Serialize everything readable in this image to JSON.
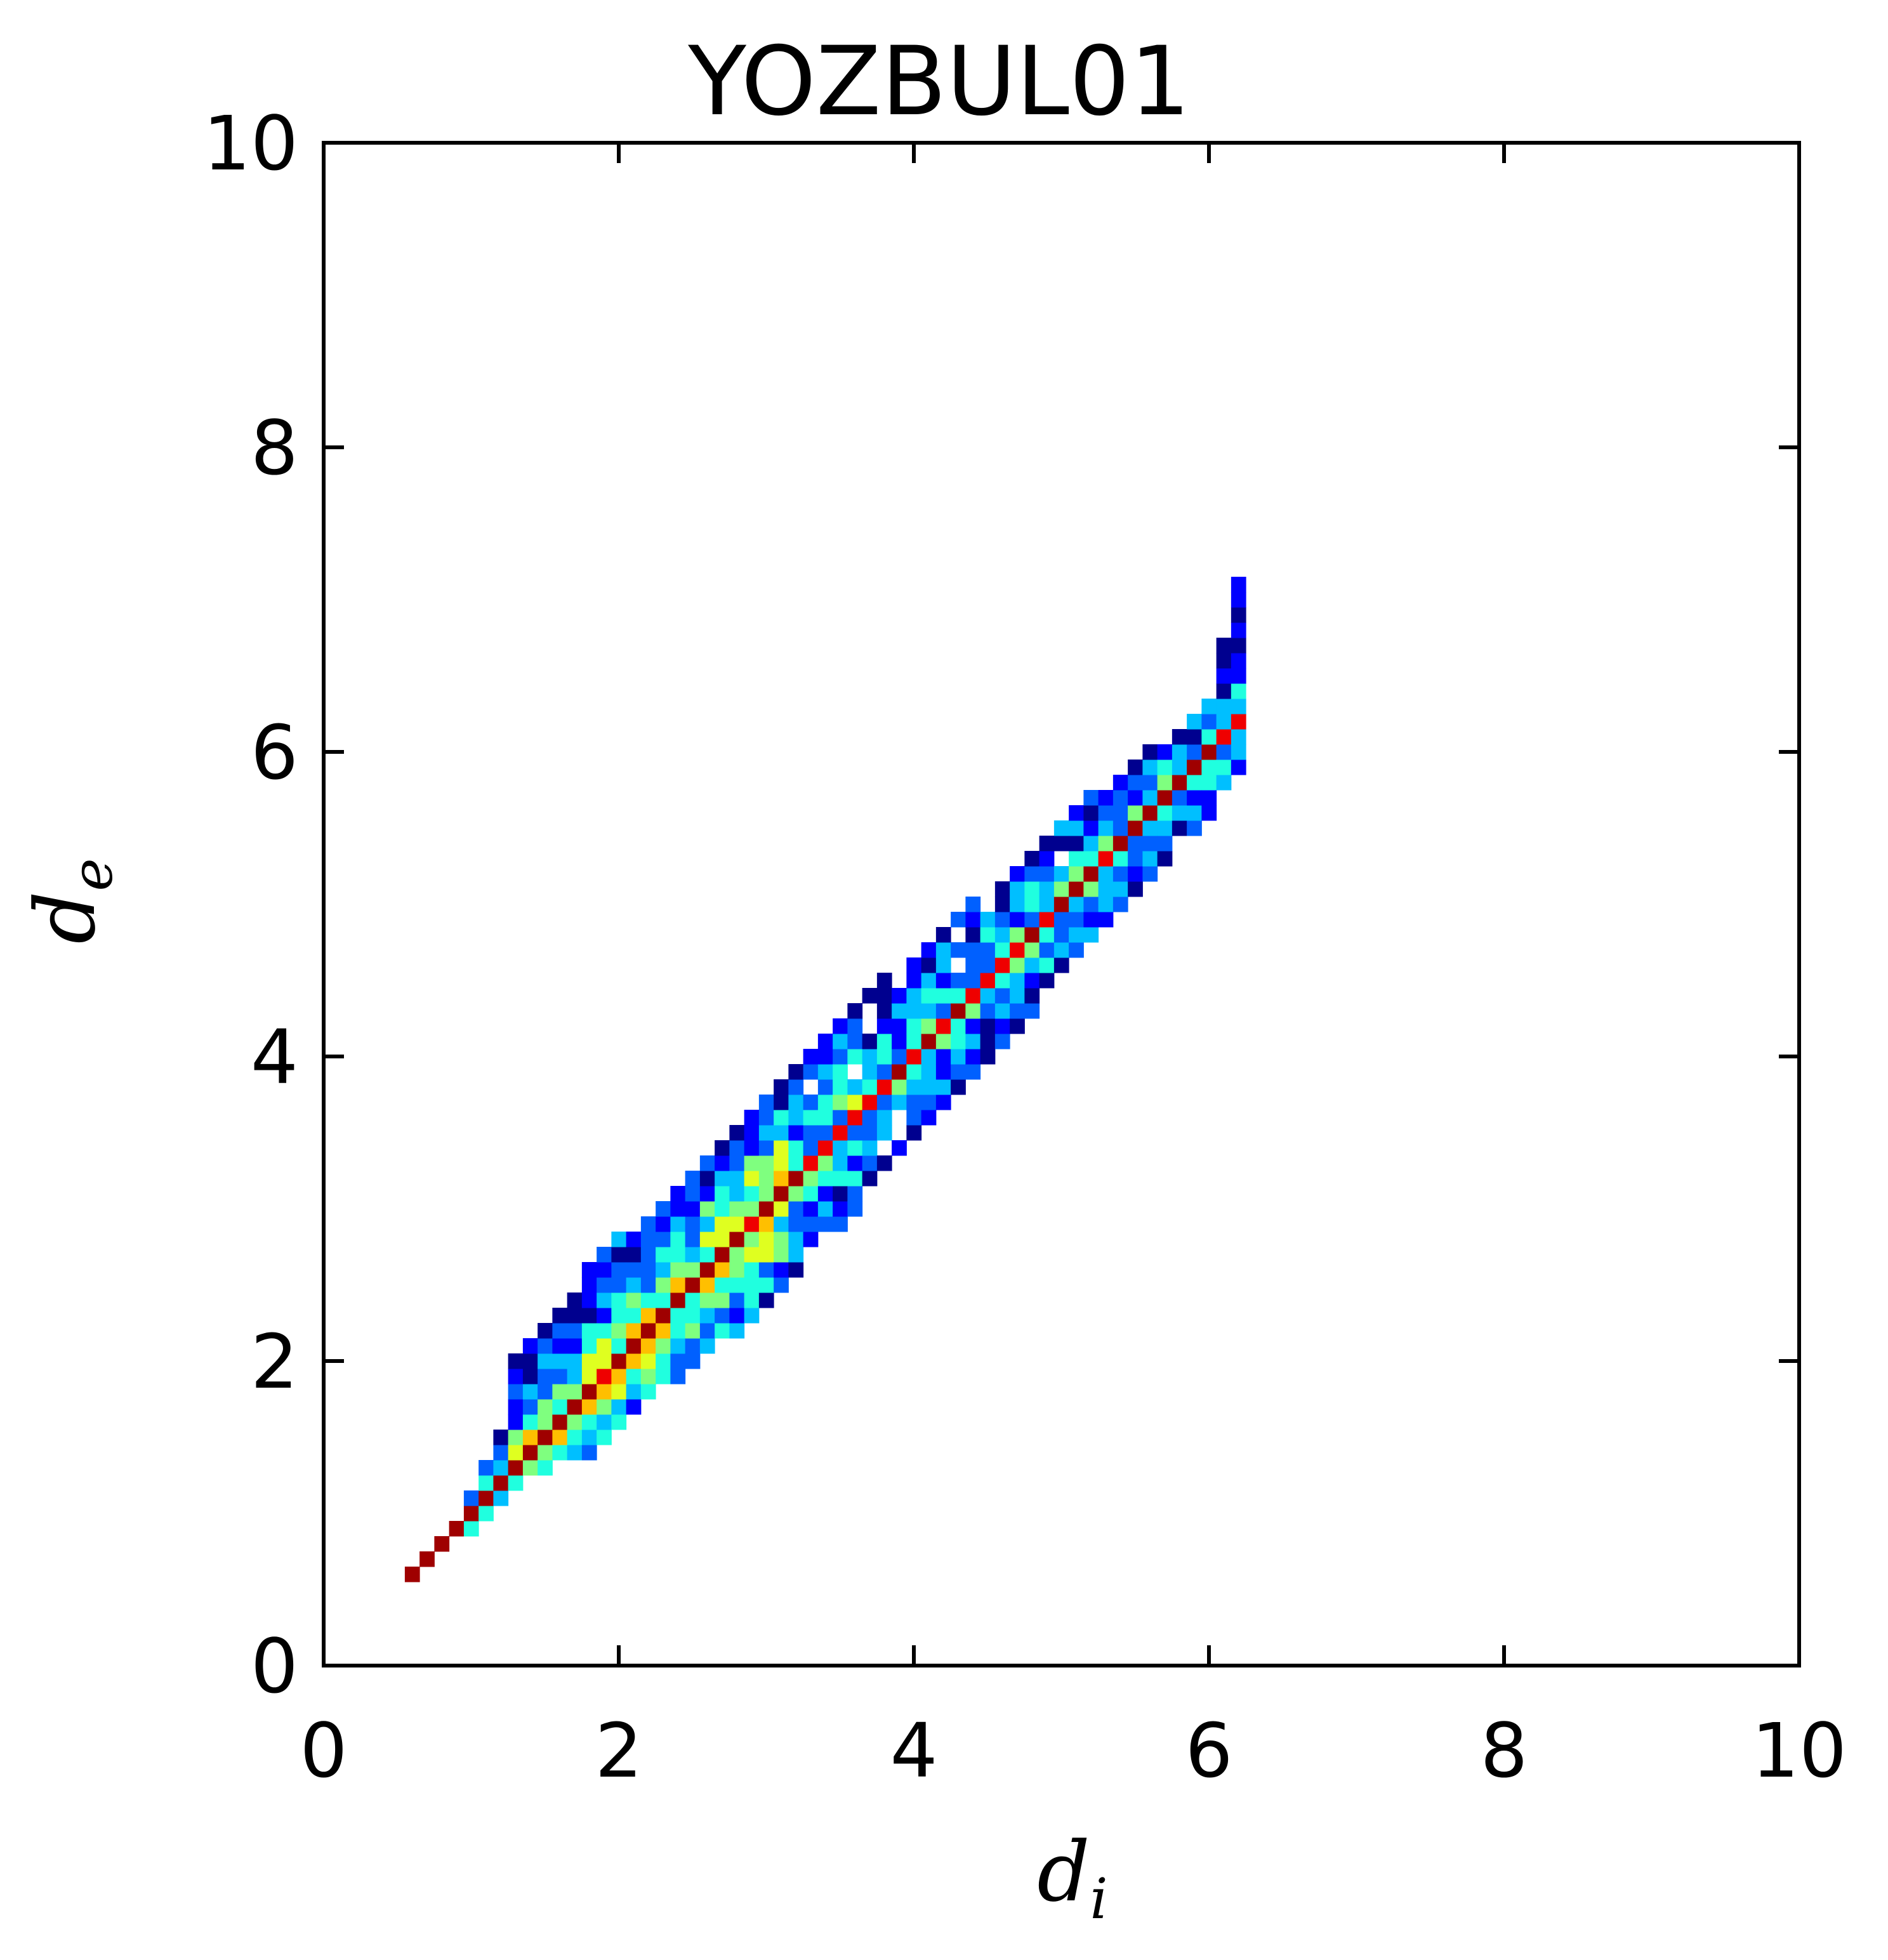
{
  "chart_data": {
    "type": "heatmap",
    "title": "YOZBUL01",
    "xlabel": {
      "main": "d",
      "sub": "i"
    },
    "ylabel": {
      "main": "d",
      "sub": "e"
    },
    "xlim": [
      0,
      10
    ],
    "ylim": [
      0,
      10
    ],
    "xticks": [
      "0",
      "2",
      "4",
      "6",
      "8",
      "10"
    ],
    "yticks": [
      "0",
      "2",
      "4",
      "6",
      "8",
      "10"
    ],
    "grid": false,
    "legend": "none",
    "colormap": "jet",
    "colors": {
      "c1": "#00008f",
      "c2": "#0000ff",
      "c3": "#0060ff",
      "c4": "#00bfff",
      "c5": "#20ffdf",
      "c6": "#7fff7f",
      "c7": "#dfff20",
      "c8": "#ffbf00",
      "c9": "#ff6000",
      "c10": "#ef0000",
      "c11": "#9f0000"
    },
    "density_band": {
      "bin_size": 0.1,
      "shape": "fingerprint distribution concentrated along the diagonal d_e = d_i",
      "points": [
        {
          "x": 0.6,
          "ymin": 0.6,
          "ymax": 0.6
        },
        {
          "x": 1.0,
          "ymin": 0.9,
          "ymax": 1.1
        },
        {
          "x": 1.2,
          "ymin": 1.1,
          "ymax": 1.5
        },
        {
          "x": 1.3,
          "ymin": 1.2,
          "ymax": 2.0
        },
        {
          "x": 1.5,
          "ymin": 1.3,
          "ymax": 2.2
        },
        {
          "x": 1.8,
          "ymin": 1.4,
          "ymax": 2.6
        },
        {
          "x": 2.0,
          "ymin": 1.6,
          "ymax": 2.8
        },
        {
          "x": 2.4,
          "ymin": 1.9,
          "ymax": 3.1
        },
        {
          "x": 2.8,
          "ymin": 2.2,
          "ymax": 3.5
        },
        {
          "x": 3.2,
          "ymin": 2.6,
          "ymax": 3.9
        },
        {
          "x": 3.6,
          "ymin": 3.0,
          "ymax": 4.4
        },
        {
          "x": 4.0,
          "ymin": 3.5,
          "ymax": 4.6
        },
        {
          "x": 4.4,
          "ymin": 3.9,
          "ymax": 5.0
        },
        {
          "x": 4.8,
          "ymin": 4.3,
          "ymax": 5.3
        },
        {
          "x": 5.2,
          "ymin": 4.8,
          "ymax": 5.7
        },
        {
          "x": 5.6,
          "ymin": 5.2,
          "ymax": 6.0
        },
        {
          "x": 6.0,
          "ymin": 5.6,
          "ymax": 6.3
        },
        {
          "x": 6.2,
          "ymin": 5.9,
          "ymax": 7.1
        },
        {
          "x": 6.3,
          "ymin": 6.0,
          "ymax": 7.2
        }
      ]
    }
  }
}
